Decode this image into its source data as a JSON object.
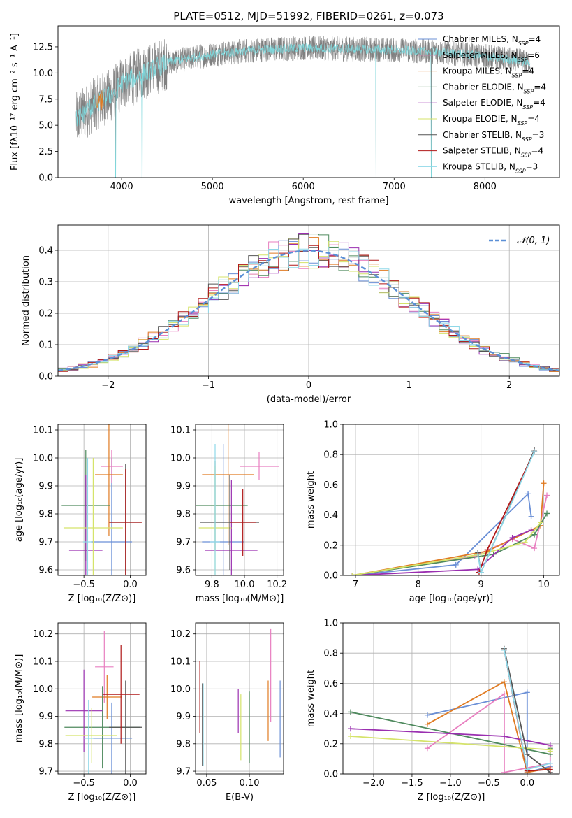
{
  "colors": {
    "chabrier_miles": "#6a8fd6",
    "salpeter_miles": "#e87fc0",
    "kroupa_miles": "#e07b22",
    "chabrier_elodie": "#4f8a5e",
    "salpeter_elodie": "#9a2fb0",
    "kroupa_elodie": "#d5e36a",
    "chabrier_stelib": "#555555",
    "salpeter_stelib": "#b01818",
    "kroupa_stelib": "#8fd8e8",
    "spec_gray": "#808080",
    "spec_cyan": "#7fd8dc",
    "gauss": "#5b8fd6",
    "grid": "#b0b0b0"
  },
  "chart_data": [
    {
      "type": "line",
      "title": "PLATE=0512, MJD=51992, FIBERID=0261, z=0.073",
      "xlabel": "wavelength [Angstrom, rest frame]",
      "ylabel": "Flux [fλ10⁻¹⁷ erg cm⁻² s⁻¹ A⁻¹]",
      "xlim": [
        3300,
        8820
      ],
      "ylim": [
        0,
        14.5
      ],
      "xticks": [
        "4000",
        "5000",
        "6000",
        "7000",
        "8000"
      ],
      "yticks": [
        "0.0",
        "2.5",
        "5.0",
        "7.5",
        "10.0",
        "12.5"
      ],
      "legend_position": "right",
      "legend": [
        {
          "label": "Chabrier MILES, N",
          "sub": "SSP",
          "suffix": "=4",
          "color_key": "chabrier_miles"
        },
        {
          "label": "Salpeter MILES, N",
          "sub": "SSP",
          "suffix": "=6",
          "color_key": "salpeter_miles"
        },
        {
          "label": "Kroupa MILES, N",
          "sub": "SSP",
          "suffix": "=4",
          "color_key": "kroupa_miles"
        },
        {
          "label": "Chabrier ELODIE, N",
          "sub": "SSP",
          "suffix": "=4",
          "color_key": "chabrier_elodie"
        },
        {
          "label": "Salpeter ELODIE, N",
          "sub": "SSP",
          "suffix": "=4",
          "color_key": "salpeter_elodie"
        },
        {
          "label": "Kroupa ELODIE, N",
          "sub": "SSP",
          "suffix": "=4",
          "color_key": "kroupa_elodie"
        },
        {
          "label": "Chabrier STELIB, N",
          "sub": "SSP",
          "suffix": "=3",
          "color_key": "chabrier_stelib"
        },
        {
          "label": "Salpeter STELIB, N",
          "sub": "SSP",
          "suffix": "=4",
          "color_key": "salpeter_stelib"
        },
        {
          "label": "Kroupa STELIB, N",
          "sub": "SSP",
          "suffix": "=3",
          "color_key": "kroupa_stelib"
        }
      ],
      "continuum": {
        "x": [
          3500,
          3700,
          3900,
          4000,
          4200,
          4500,
          5000,
          5500,
          6000,
          6500,
          7000,
          7500,
          8000,
          8500
        ],
        "y": [
          5.5,
          7.0,
          8.0,
          9.0,
          9.8,
          11.0,
          11.8,
          12.2,
          12.4,
          12.3,
          12.2,
          12.0,
          11.6,
          11.0
        ]
      },
      "absorption_lines": [
        {
          "x": 3934,
          "y": 0.0
        },
        {
          "x": 4226,
          "y": 0.0
        },
        {
          "x": 6800,
          "y": 0.0
        },
        {
          "x": 7410,
          "y": 0.0
        }
      ]
    },
    {
      "type": "histogram",
      "xlabel": "(data-model)/error",
      "ylabel": "Normed distribution",
      "xlim": [
        -2.5,
        2.5
      ],
      "ylim": [
        0,
        0.48
      ],
      "xticks": [
        "−2",
        "−1",
        "0",
        "1",
        "2"
      ],
      "yticks": [
        "0.0",
        "0.1",
        "0.2",
        "0.3",
        "0.4"
      ],
      "bin_width": 0.1,
      "reference_curve": {
        "label": "𝒩(0, 1)",
        "mean": 0,
        "sigma": 1
      },
      "legend_position": "top-right",
      "series_count": 9
    },
    {
      "type": "scatter",
      "xlabel": "Z [log₁₀(Z/Z⊙)]",
      "ylabel": "age  [log₁₀(age/yr)]",
      "xlim": [
        -0.78,
        0.17
      ],
      "ylim": [
        9.58,
        10.12
      ],
      "xticks": [
        "−0.5",
        "0.0"
      ],
      "yticks": [
        "9.6",
        "9.7",
        "9.8",
        "9.9",
        "10.0",
        "10.1"
      ],
      "points": [
        {
          "series": "chabrier_miles",
          "x": -0.2,
          "y": 9.7,
          "xerr": 0.22,
          "yerr": 0.3
        },
        {
          "series": "salpeter_miles",
          "x": -0.2,
          "y": 9.97,
          "xerr": 0.12,
          "yerr": 0.06
        },
        {
          "series": "kroupa_miles",
          "x": -0.23,
          "y": 9.94,
          "xerr": 0.15,
          "yerr": 0.22
        },
        {
          "series": "chabrier_elodie",
          "x": -0.48,
          "y": 9.83,
          "xerr": 0.26,
          "yerr": 0.2
        },
        {
          "series": "salpeter_elodie",
          "x": -0.48,
          "y": 9.67,
          "xerr": 0.18,
          "yerr": 0.27
        },
        {
          "series": "kroupa_elodie",
          "x": -0.4,
          "y": 9.75,
          "xerr": 0.32,
          "yerr": 0.25
        },
        {
          "series": "chabrier_stelib",
          "x": -0.05,
          "y": 9.77,
          "xerr": 0.17,
          "yerr": 0.21
        },
        {
          "series": "salpeter_stelib",
          "x": -0.05,
          "y": 9.77,
          "xerr": 0.18,
          "yerr": 0.19
        },
        {
          "series": "kroupa_stelib",
          "x": -0.46,
          "y": 9.7,
          "xerr": 0.05,
          "yerr": 0.3
        }
      ]
    },
    {
      "type": "scatter",
      "xlabel": "mass [log₁₀(M/M⊙)]",
      "ylabel": "",
      "xlim": [
        9.7,
        10.24
      ],
      "ylim": [
        9.58,
        10.12
      ],
      "xticks": [
        "9.8",
        "10.0",
        "10.2"
      ],
      "yticks": [
        "9.6",
        "9.7",
        "9.8",
        "9.9",
        "10.0",
        "10.1"
      ],
      "points": [
        {
          "series": "chabrier_miles",
          "x": 9.87,
          "y": 9.7,
          "xerr": 0.13,
          "yerr": 0.35
        },
        {
          "series": "salpeter_miles",
          "x": 10.09,
          "y": 9.97,
          "xerr": 0.12,
          "yerr": 0.05
        },
        {
          "series": "kroupa_miles",
          "x": 9.9,
          "y": 9.94,
          "xerr": 0.16,
          "yerr": 0.25
        },
        {
          "series": "chabrier_elodie",
          "x": 9.82,
          "y": 9.83,
          "xerr": 0.2,
          "yerr": 0.16
        },
        {
          "series": "salpeter_elodie",
          "x": 9.92,
          "y": 9.67,
          "xerr": 0.16,
          "yerr": 0.25
        },
        {
          "series": "kroupa_elodie",
          "x": 9.82,
          "y": 9.75,
          "xerr": 0.1,
          "yerr": 0.22
        },
        {
          "series": "chabrier_stelib",
          "x": 9.91,
          "y": 9.77,
          "xerr": 0.18,
          "yerr": 0.17
        },
        {
          "series": "salpeter_stelib",
          "x": 9.99,
          "y": 9.77,
          "xerr": 0.08,
          "yerr": 0.12
        },
        {
          "series": "kroupa_stelib",
          "x": 9.82,
          "y": 9.7,
          "xerr": 0.03,
          "yerr": 0.35
        }
      ]
    },
    {
      "type": "line",
      "xlabel": "age  [log₁₀(age/yr)]",
      "ylabel": "mass weight",
      "xlim": [
        6.8,
        10.25
      ],
      "ylim": [
        0,
        1.0
      ],
      "xticks": [
        "7",
        "8",
        "9",
        "10"
      ],
      "yticks": [
        "0.0",
        "0.2",
        "0.4",
        "0.6",
        "0.8",
        "1.0"
      ],
      "series": [
        {
          "key": "chabrier_miles",
          "x": [
            6.95,
            8.6,
            9.75,
            9.8
          ],
          "y": [
            0.0,
            0.07,
            0.54,
            0.39
          ]
        },
        {
          "key": "salpeter_miles",
          "x": [
            6.95,
            8.9,
            9.5,
            9.85,
            10.05
          ],
          "y": [
            0.0,
            0.13,
            0.24,
            0.18,
            0.53
          ]
        },
        {
          "key": "kroupa_miles",
          "x": [
            6.95,
            9.1,
            9.95,
            10.0
          ],
          "y": [
            0.0,
            0.16,
            0.33,
            0.61
          ]
        },
        {
          "key": "chabrier_elodie",
          "x": [
            6.95,
            9.2,
            9.85,
            10.05
          ],
          "y": [
            0.0,
            0.14,
            0.27,
            0.41
          ]
        },
        {
          "key": "salpeter_elodie",
          "x": [
            6.95,
            8.95,
            9.5,
            9.8
          ],
          "y": [
            0.0,
            0.04,
            0.25,
            0.3
          ]
        },
        {
          "key": "kroupa_elodie",
          "x": [
            6.95,
            9.0,
            9.7,
            9.95
          ],
          "y": [
            0.0,
            0.14,
            0.22,
            0.35
          ]
        },
        {
          "key": "chabrier_stelib",
          "x": [
            8.95,
            9.0,
            9.85
          ],
          "y": [
            0.15,
            0.02,
            0.83
          ]
        },
        {
          "key": "salpeter_stelib",
          "x": [
            8.97,
            9.1,
            9.85
          ],
          "y": [
            0.02,
            0.17,
            0.82
          ]
        },
        {
          "key": "kroupa_stelib",
          "x": [
            8.95,
            9.0,
            9.85
          ],
          "y": [
            0.14,
            0.02,
            0.82
          ]
        }
      ]
    },
    {
      "type": "scatter",
      "xlabel": "Z [log₁₀(Z/Z⊙)]",
      "ylabel": "mass [log₁₀(M/M⊙)]",
      "xlim": [
        -0.78,
        0.17
      ],
      "ylim": [
        9.69,
        10.24
      ],
      "xticks": [
        "−0.5",
        "0.0"
      ],
      "yticks": [
        "9.7",
        "9.8",
        "9.9",
        "10.0",
        "10.1",
        "10.2"
      ],
      "points": [
        {
          "series": "chabrier_miles",
          "x": -0.2,
          "y": 9.82,
          "xerr": 0.22,
          "yerr": 0.13
        },
        {
          "series": "salpeter_miles",
          "x": -0.28,
          "y": 10.08,
          "xerr": 0.1,
          "yerr": 0.13
        },
        {
          "series": "kroupa_miles",
          "x": -0.25,
          "y": 9.97,
          "xerr": 0.16,
          "yerr": 0.08
        },
        {
          "series": "chabrier_elodie",
          "x": -0.3,
          "y": 9.86,
          "xerr": 0.41,
          "yerr": 0.15
        },
        {
          "series": "salpeter_elodie",
          "x": -0.5,
          "y": 9.92,
          "xerr": 0.2,
          "yerr": 0.15
        },
        {
          "series": "kroupa_elodie",
          "x": -0.42,
          "y": 9.83,
          "xerr": 0.28,
          "yerr": 0.1
        },
        {
          "series": "chabrier_stelib",
          "x": -0.05,
          "y": 9.86,
          "xerr": 0.18,
          "yerr": 0.17
        },
        {
          "series": "salpeter_stelib",
          "x": -0.1,
          "y": 9.98,
          "xerr": 0.2,
          "yerr": 0.18
        },
        {
          "series": "kroupa_stelib",
          "x": -0.45,
          "y": 9.82,
          "xerr": 0.05,
          "yerr": 0.14
        }
      ]
    },
    {
      "type": "errorbar",
      "xlabel": "E(B-V)",
      "ylabel": "",
      "xlim": [
        0.037,
        0.14
      ],
      "ylim": [
        9.69,
        10.24
      ],
      "xticks": [
        "0.05",
        "0.10"
      ],
      "yticks": [
        "9.7",
        "9.8",
        "9.9",
        "10.0",
        "10.1",
        "10.2"
      ],
      "points": [
        {
          "series": "salpeter_stelib",
          "x": 0.042,
          "y": 9.97,
          "yerr": 0.13
        },
        {
          "series": "chabrier_stelib",
          "x": 0.045,
          "y": 9.87,
          "yerr": 0.15
        },
        {
          "series": "kroupa_stelib",
          "x": 0.046,
          "y": 9.87,
          "yerr": 0.15
        },
        {
          "series": "salpeter_elodie",
          "x": 0.087,
          "y": 9.92,
          "yerr": 0.08
        },
        {
          "series": "kroupa_elodie",
          "x": 0.09,
          "y": 9.86,
          "yerr": 0.12
        },
        {
          "series": "chabrier_elodie",
          "x": 0.1,
          "y": 9.86,
          "yerr": 0.13
        },
        {
          "series": "kroupa_miles",
          "x": 0.122,
          "y": 9.92,
          "yerr": 0.11
        },
        {
          "series": "salpeter_miles",
          "x": 0.125,
          "y": 10.05,
          "yerr": 0.17
        },
        {
          "series": "chabrier_miles",
          "x": 0.136,
          "y": 9.89,
          "yerr": 0.14
        }
      ]
    },
    {
      "type": "line",
      "xlabel": "Z [log₁₀(Z/Z⊙)]",
      "ylabel": "mass weight",
      "xlim": [
        -2.4,
        0.42
      ],
      "ylim": [
        0,
        1.0
      ],
      "xticks": [
        "−2.0",
        "−1.5",
        "−1.0",
        "−0.5",
        "0.0"
      ],
      "yticks": [
        "0.0",
        "0.2",
        "0.4",
        "0.6",
        "0.8",
        "1.0"
      ],
      "series": [
        {
          "key": "chabrier_miles",
          "x": [
            -1.3,
            0.0,
            0.0,
            0.3
          ],
          "y": [
            0.39,
            0.54,
            0.01,
            0.05
          ]
        },
        {
          "key": "salpeter_miles",
          "x": [
            -1.3,
            -0.3,
            -0.3,
            0.3,
            0.3,
            0.3
          ],
          "y": [
            0.17,
            0.53,
            0.01,
            0.07,
            0.18,
            0.04
          ]
        },
        {
          "key": "kroupa_miles",
          "x": [
            -1.3,
            -0.3,
            0.0,
            0.3
          ],
          "y": [
            0.33,
            0.61,
            0.01,
            0.04
          ]
        },
        {
          "key": "chabrier_elodie",
          "x": [
            -2.3,
            0.3,
            0.3
          ],
          "y": [
            0.41,
            0.13,
            0.17
          ]
        },
        {
          "key": "salpeter_elodie",
          "x": [
            -2.3,
            -0.3,
            0.3
          ],
          "y": [
            0.3,
            0.25,
            0.19
          ]
        },
        {
          "key": "kroupa_elodie",
          "x": [
            -2.3,
            0.3,
            0.3
          ],
          "y": [
            0.25,
            0.16,
            0.15
          ]
        },
        {
          "key": "chabrier_stelib",
          "x": [
            -0.3,
            0.0,
            0.3
          ],
          "y": [
            0.83,
            0.13,
            0.01
          ]
        },
        {
          "key": "salpeter_stelib",
          "x": [
            -0.3,
            0.0,
            0.3
          ],
          "y": [
            0.82,
            0.02,
            0.03
          ]
        },
        {
          "key": "kroupa_stelib",
          "x": [
            -0.3,
            0.0,
            0.3
          ],
          "y": [
            0.82,
            0.03,
            0.07
          ]
        }
      ]
    }
  ]
}
